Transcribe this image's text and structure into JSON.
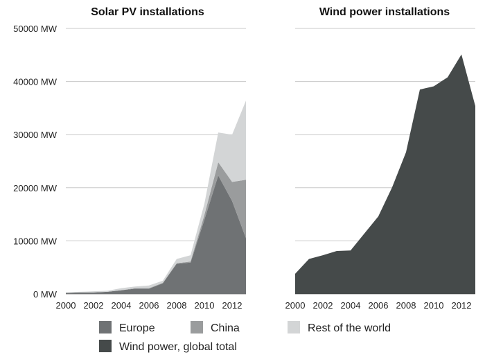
{
  "chart_data": [
    {
      "type": "area",
      "stacked": true,
      "title": "Solar PV installations",
      "x": [
        2000,
        2001,
        2002,
        2003,
        2004,
        2005,
        2006,
        2007,
        2008,
        2009,
        2010,
        2011,
        2012,
        2013
      ],
      "series": [
        {
          "name": "Europe",
          "color": "#6f7274",
          "values": [
            0.2,
            0.3,
            0.3,
            0.4,
            0.7,
            1.0,
            1.0,
            2.0,
            5.7,
            5.9,
            14.0,
            22.3,
            17.5,
            10.5
          ]
        },
        {
          "name": "China",
          "color": "#9a9c9d",
          "values": [
            0,
            0,
            0,
            0,
            0,
            0.1,
            0.1,
            0.1,
            0.1,
            0.2,
            0.9,
            2.5,
            3.6,
            11.0
          ]
        },
        {
          "name": "Rest of the world",
          "color": "#d3d5d6",
          "values": [
            0.1,
            0.1,
            0.2,
            0.2,
            0.4,
            0.3,
            0.5,
            0.4,
            0.8,
            1.2,
            2.1,
            5.6,
            8.9,
            14.9
          ]
        }
      ],
      "value_unit_note": "values in thousands of MW",
      "ylim": [
        0,
        50000
      ],
      "yticks": [
        "0 MW",
        "10000 MW",
        "20000 MW",
        "30000 MW",
        "40000 MW",
        "50000 MW"
      ],
      "xticks": [
        "2000",
        "2002",
        "2004",
        "2006",
        "2008",
        "2010",
        "2012"
      ],
      "grid": true
    },
    {
      "type": "area",
      "title": "Wind power installations",
      "x": [
        2000,
        2001,
        2002,
        2003,
        2004,
        2005,
        2006,
        2007,
        2008,
        2009,
        2010,
        2011,
        2012,
        2013
      ],
      "series": [
        {
          "name": "Wind power, global total",
          "color": "#454a4a",
          "values": [
            3.8,
            6.6,
            7.3,
            8.1,
            8.2,
            11.4,
            14.6,
            20.1,
            26.7,
            38.5,
            39.1,
            40.8,
            45.1,
            35.4
          ]
        }
      ],
      "ylim": [
        0,
        50000
      ],
      "xticks": [
        "2000",
        "2002",
        "2004",
        "2006",
        "2008",
        "2010",
        "2012"
      ],
      "grid": true
    }
  ],
  "legend": {
    "position": "bottom"
  }
}
